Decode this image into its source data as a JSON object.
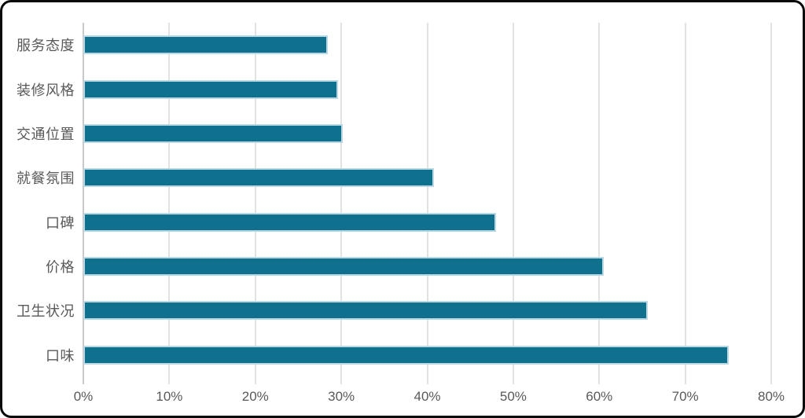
{
  "chart_data": {
    "type": "bar",
    "orientation": "horizontal",
    "title": "",
    "categories": [
      "服务态度",
      "装修风格",
      "交通位置",
      "就餐氛围",
      "口碑",
      "价格",
      "卫生状况",
      "口味"
    ],
    "values": [
      28.1,
      29.3,
      29.8,
      40.4,
      47.6,
      60.2,
      65.3,
      74.7
    ],
    "x_tick_labels": [
      "0%",
      "10%",
      "20%",
      "30%",
      "40%",
      "50%",
      "60%",
      "70%",
      "80%"
    ],
    "xlim": [
      0,
      80
    ],
    "grid": true,
    "legend": false
  },
  "colors": {
    "bar_fill": "#10718f",
    "bar_border": "#b9d8e3",
    "gridline": "#e2e2e2",
    "axis_line": "#c9c9c9",
    "label_text": "#595959",
    "frame_border": "#0a0a0a",
    "background": "#ffffff"
  }
}
